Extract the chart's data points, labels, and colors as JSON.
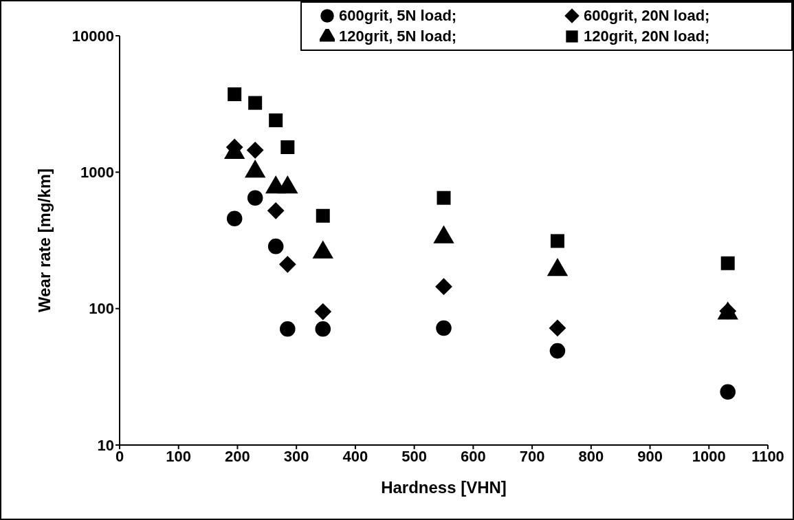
{
  "chart_data": {
    "type": "scatter",
    "xlabel": "Hardness [VHN]",
    "ylabel": "Wear rate [mg/km]",
    "xlim": [
      0,
      1100
    ],
    "xticks": [
      0,
      100,
      200,
      300,
      400,
      500,
      600,
      700,
      800,
      900,
      1000,
      1100
    ],
    "ylim": [
      10,
      10000
    ],
    "yticks": [
      10,
      100,
      1000,
      10000
    ],
    "log": "y",
    "grid": false,
    "legend": "top right",
    "x": [
      195,
      230,
      265,
      285,
      345,
      550,
      743,
      1032
    ],
    "series": [
      {
        "name": "600grit, 5N load;",
        "color": "#000000",
        "marker": "circle",
        "values": [
          457,
          648,
          286,
          71,
          71,
          72,
          49,
          24.5
        ]
      },
      {
        "name": "600grit, 20N load;",
        "color": "#000000",
        "marker": "diamond",
        "values": [
          1525,
          1450,
          522,
          211,
          95,
          145,
          72,
          96
        ]
      },
      {
        "name": "120grit, 5N load;",
        "color": "#000000",
        "marker": "triangle",
        "values": [
          1387,
          1010,
          773,
          773,
          258,
          333,
          192,
          92
        ]
      },
      {
        "name": "120grit, 20N load;",
        "color": "#000000",
        "marker": "square",
        "values": [
          3725,
          3220,
          2400,
          1525,
          479,
          648,
          313,
          215
        ]
      }
    ]
  }
}
